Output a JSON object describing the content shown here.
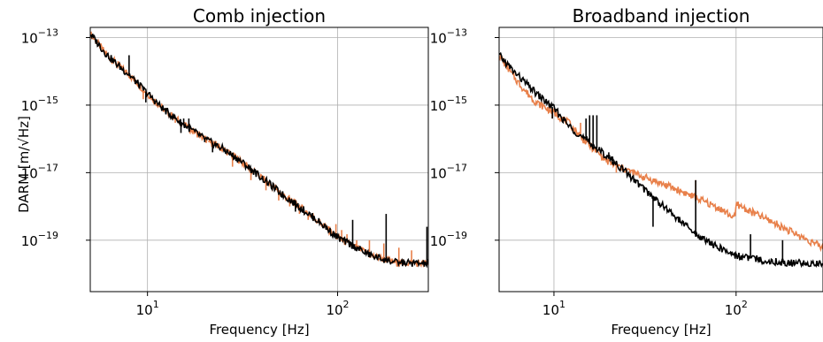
{
  "ylabel_main": "DARM [m/√Hz]",
  "colors": {
    "injection": "#e8804a",
    "reference": "#000000"
  },
  "chart_data": [
    {
      "type": "line",
      "title": "Comb injection",
      "xlabel": "Frequency [Hz]",
      "xscale": "log",
      "yscale": "log",
      "xlim": [
        5,
        300
      ],
      "ylim": [
        3e-21,
        2e-13
      ],
      "xticks": [
        {
          "base": "10",
          "exp": "1",
          "value": 10
        },
        {
          "base": "10",
          "exp": "2",
          "value": 100
        }
      ],
      "yticks": [
        {
          "base": "10",
          "exp": "−13",
          "value": 1e-13
        },
        {
          "base": "10",
          "exp": "−15",
          "value": 1e-15
        },
        {
          "base": "10",
          "exp": "−17",
          "value": 1e-17
        },
        {
          "base": "10",
          "exp": "−19",
          "value": 1e-19
        }
      ],
      "grid": true,
      "background": {
        "x": [
          5,
          6,
          7,
          8,
          10,
          12,
          15,
          20,
          25,
          30,
          40,
          50,
          60,
          80,
          100,
          150,
          200,
          300
        ],
        "y": [
          1.3e-13,
          3.5e-14,
          1.5e-14,
          8e-15,
          2.2e-15,
          8e-16,
          3e-16,
          1e-16,
          5e-17,
          2.5e-17,
          7e-18,
          2.5e-18,
          1.2e-18,
          3.5e-19,
          1.2e-19,
          3.5e-20,
          2.2e-20,
          2e-20
        ]
      },
      "series": [
        {
          "role": "injection",
          "peaks": [
            {
              "x": 7.0,
              "y": 2e-14
            },
            {
              "x": 9.5,
              "y": 1.5e-15
            },
            {
              "x": 14,
              "y": 3e-16
            },
            {
              "x": 21,
              "y": 8e-17
            },
            {
              "x": 28,
              "y": 1.5e-17
            },
            {
              "x": 35,
              "y": 6e-18
            },
            {
              "x": 42,
              "y": 3e-18
            },
            {
              "x": 49,
              "y": 1.5e-18
            },
            {
              "x": 56,
              "y": 1e-18
            },
            {
              "x": 63,
              "y": 6e-19
            },
            {
              "x": 70,
              "y": 4e-19
            },
            {
              "x": 77,
              "y": 4e-19
            },
            {
              "x": 84,
              "y": 3e-19
            },
            {
              "x": 91,
              "y": 2.5e-19
            },
            {
              "x": 98,
              "y": 3e-19
            },
            {
              "x": 105,
              "y": 2e-19
            },
            {
              "x": 112,
              "y": 1.5e-19
            },
            {
              "x": 126,
              "y": 1e-19
            },
            {
              "x": 147,
              "y": 1e-19
            },
            {
              "x": 175,
              "y": 8e-20
            },
            {
              "x": 210,
              "y": 6e-20
            },
            {
              "x": 245,
              "y": 5e-20
            }
          ]
        },
        {
          "role": "reference",
          "peaks": [
            {
              "x": 8,
              "y": 3e-14
            },
            {
              "x": 9.8,
              "y": 1.2e-15
            },
            {
              "x": 15,
              "y": 1.5e-16
            },
            {
              "x": 15.5,
              "y": 4e-16
            },
            {
              "x": 16.5,
              "y": 4e-16
            },
            {
              "x": 20,
              "y": 8e-17
            },
            {
              "x": 22,
              "y": 4e-17
            },
            {
              "x": 35,
              "y": 1e-17
            },
            {
              "x": 60,
              "y": 7e-19
            },
            {
              "x": 120,
              "y": 4e-19
            },
            {
              "x": 180,
              "y": 6e-19
            },
            {
              "x": 295,
              "y": 2.5e-19
            }
          ]
        }
      ]
    },
    {
      "type": "line",
      "title": "Broadband injection",
      "xlabel": "Frequency [Hz]",
      "xscale": "log",
      "yscale": "log",
      "xlim": [
        5,
        300
      ],
      "ylim": [
        3e-21,
        2e-13
      ],
      "xticks": [
        {
          "base": "10",
          "exp": "1",
          "value": 10
        },
        {
          "base": "10",
          "exp": "2",
          "value": 100
        }
      ],
      "yticks": [
        {
          "base": "10",
          "exp": "−13",
          "value": 1e-13
        },
        {
          "base": "10",
          "exp": "−15",
          "value": 1e-15
        },
        {
          "base": "10",
          "exp": "−17",
          "value": 1e-17
        },
        {
          "base": "10",
          "exp": "−19",
          "value": 1e-19
        }
      ],
      "grid": true,
      "series": [
        {
          "role": "injection",
          "x": [
            5,
            6,
            7,
            8,
            10,
            12,
            15,
            20,
            25,
            30,
            40,
            50,
            60,
            80,
            99,
            100,
            120,
            150,
            200,
            300
          ],
          "y": [
            3e-14,
            7e-15,
            2.5e-15,
            1.2e-15,
            6e-16,
            3e-16,
            8e-17,
            2e-17,
            1.2e-17,
            8e-18,
            4.5e-18,
            2.8e-18,
            1.8e-18,
            9e-19,
            4.5e-19,
            1.2e-18,
            7e-19,
            4e-19,
            1.8e-19,
            6e-20
          ],
          "peaks": [
            {
              "x": 9.8,
              "y": 4e-16
            },
            {
              "x": 14,
              "y": 3e-16
            },
            {
              "x": 22,
              "y": 1e-17
            },
            {
              "x": 60,
              "y": 6e-18
            }
          ]
        },
        {
          "role": "reference",
          "x": [
            5,
            6,
            7,
            8,
            10,
            12,
            15,
            20,
            25,
            30,
            40,
            50,
            60,
            80,
            100,
            150,
            200,
            300
          ],
          "y": [
            3e-14,
            1e-14,
            4.5e-15,
            2.2e-15,
            8e-16,
            2.5e-16,
            9e-17,
            2.8e-17,
            1e-17,
            4e-18,
            1e-18,
            3.5e-19,
            1.5e-19,
            6e-20,
            3.5e-20,
            2.4e-20,
            2.1e-20,
            2e-20
          ],
          "peaks": [
            {
              "x": 9.8,
              "y": 4e-16
            },
            {
              "x": 15,
              "y": 4e-16
            },
            {
              "x": 15.7,
              "y": 5e-16
            },
            {
              "x": 16.4,
              "y": 5e-16
            },
            {
              "x": 17.2,
              "y": 5e-16
            },
            {
              "x": 20,
              "y": 4e-17
            },
            {
              "x": 21,
              "y": 3e-17
            },
            {
              "x": 22,
              "y": 2e-17
            },
            {
              "x": 35,
              "y": 2.5e-19
            },
            {
              "x": 60,
              "y": 6e-18
            },
            {
              "x": 120,
              "y": 1.5e-19
            },
            {
              "x": 180,
              "y": 1e-19
            }
          ]
        }
      ]
    }
  ]
}
